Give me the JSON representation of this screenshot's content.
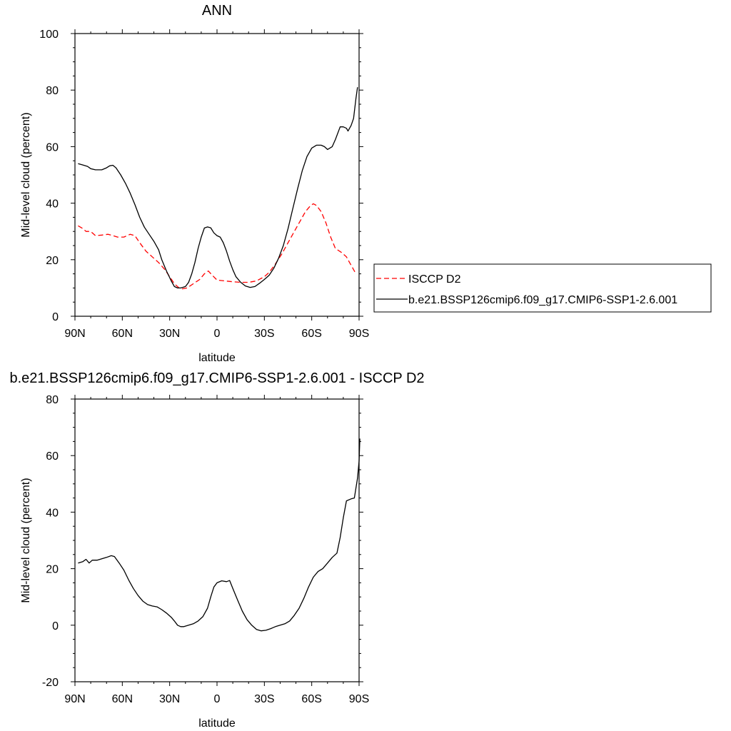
{
  "chart_data": [
    {
      "type": "line",
      "title": "ANN",
      "xlabel": "latitude",
      "ylabel": "Mid-level cloud (percent)",
      "xlim": [
        90,
        -90
      ],
      "ylim": [
        0,
        100
      ],
      "x_ticks": [
        90,
        60,
        30,
        0,
        -30,
        -60,
        -90
      ],
      "x_tick_labels": [
        "90N",
        "60N",
        "30N",
        "0",
        "30S",
        "60S",
        "90S"
      ],
      "y_ticks": [
        0,
        20,
        40,
        60,
        80,
        100
      ],
      "y_tick_labels": [
        "0",
        "20",
        "40",
        "60",
        "80",
        "100"
      ],
      "legend_position": "right",
      "series": [
        {
          "name": "ISCCP D2",
          "color": "#ff0000",
          "dash": "dashed",
          "points": [
            [
              88,
              32
            ],
            [
              85,
              31
            ],
            [
              83,
              30
            ],
            [
              80,
              30
            ],
            [
              77,
              28.5
            ],
            [
              73,
              28.7
            ],
            [
              69,
              29
            ],
            [
              66,
              28.5
            ],
            [
              63,
              28
            ],
            [
              59,
              28
            ],
            [
              55,
              29
            ],
            [
              52,
              28.5
            ],
            [
              49,
              26
            ],
            [
              45,
              23
            ],
            [
              41,
              21
            ],
            [
              37,
              19
            ],
            [
              33,
              16.5
            ],
            [
              30,
              14
            ],
            [
              27,
              11.5
            ],
            [
              24,
              10
            ],
            [
              22,
              9.7
            ],
            [
              19,
              10
            ],
            [
              15,
              11.5
            ],
            [
              11,
              13
            ],
            [
              8,
              15
            ],
            [
              5.5,
              16
            ],
            [
              3,
              14.5
            ],
            [
              0,
              12.8
            ],
            [
              -5,
              12.5
            ],
            [
              -10,
              12.2
            ],
            [
              -15,
              12
            ],
            [
              -20,
              12
            ],
            [
              -25,
              12.5
            ],
            [
              -30,
              14
            ],
            [
              -33,
              15.5
            ],
            [
              -37,
              18.5
            ],
            [
              -41,
              22
            ],
            [
              -45,
              26
            ],
            [
              -49,
              30
            ],
            [
              -53,
              34
            ],
            [
              -56,
              37
            ],
            [
              -59,
              39
            ],
            [
              -61,
              39.8
            ],
            [
              -63,
              39.2
            ],
            [
              -66,
              37
            ],
            [
              -69,
              33
            ],
            [
              -72,
              28
            ],
            [
              -75,
              24
            ],
            [
              -79,
              22.5
            ],
            [
              -82,
              21
            ],
            [
              -84,
              19
            ],
            [
              -86,
              17
            ],
            [
              -88,
              15
            ]
          ]
        },
        {
          "name": "b.e21.BSSP126cmip6.f09_g17.CMIP6-SSP1-2.6.001",
          "color": "#000000",
          "dash": "solid",
          "points": [
            [
              88,
              54
            ],
            [
              85,
              53.5
            ],
            [
              82,
              53
            ],
            [
              80,
              52.2
            ],
            [
              77,
              51.8
            ],
            [
              73,
              51.8
            ],
            [
              70,
              52.5
            ],
            [
              68,
              53.2
            ],
            [
              66,
              53.4
            ],
            [
              64,
              52.5
            ],
            [
              61,
              50
            ],
            [
              58,
              47
            ],
            [
              55,
              43.5
            ],
            [
              52,
              39.5
            ],
            [
              49,
              35
            ],
            [
              46,
              31.5
            ],
            [
              43,
              29
            ],
            [
              40,
              26.5
            ],
            [
              37,
              23.5
            ],
            [
              35,
              20
            ],
            [
              32,
              16
            ],
            [
              29,
              12.5
            ],
            [
              27,
              10.5
            ],
            [
              25,
              10
            ],
            [
              23,
              10
            ],
            [
              20,
              10.5
            ],
            [
              18,
              12
            ],
            [
              16,
              15
            ],
            [
              14,
              19
            ],
            [
              12,
              24
            ],
            [
              10,
              28
            ],
            [
              8,
              31.2
            ],
            [
              6,
              31.6
            ],
            [
              4,
              31.3
            ],
            [
              2,
              29.5
            ],
            [
              0,
              28.5
            ],
            [
              -2,
              28
            ],
            [
              -4,
              26
            ],
            [
              -6,
              23
            ],
            [
              -8,
              19.5
            ],
            [
              -10,
              16.5
            ],
            [
              -12,
              14
            ],
            [
              -15,
              12
            ],
            [
              -18,
              10.7
            ],
            [
              -21,
              10.2
            ],
            [
              -24,
              10.5
            ],
            [
              -27,
              11.7
            ],
            [
              -30,
              13
            ],
            [
              -33,
              14.5
            ],
            [
              -36,
              17
            ],
            [
              -39,
              20.5
            ],
            [
              -42,
              25
            ],
            [
              -45,
              31
            ],
            [
              -48,
              38
            ],
            [
              -51,
              45
            ],
            [
              -54,
              51.5
            ],
            [
              -57,
              56.5
            ],
            [
              -60,
              59.5
            ],
            [
              -63,
              60.5
            ],
            [
              -66,
              60.5
            ],
            [
              -68,
              60
            ],
            [
              -70,
              59
            ],
            [
              -73,
              60
            ],
            [
              -75,
              62.5
            ],
            [
              -78,
              67
            ],
            [
              -80,
              67
            ],
            [
              -82,
              66.5
            ],
            [
              -83,
              65.5
            ],
            [
              -85,
              67.5
            ],
            [
              -86.5,
              70
            ],
            [
              -88,
              77
            ],
            [
              -89,
              81
            ]
          ]
        }
      ]
    },
    {
      "type": "line",
      "title": "b.e21.BSSP126cmip6.f09_g17.CMIP6-SSP1-2.6.001 - ISCCP D2",
      "xlabel": "latitude",
      "ylabel": "Mid-level cloud (percent)",
      "xlim": [
        90,
        -90
      ],
      "ylim": [
        -20,
        80
      ],
      "x_ticks": [
        90,
        60,
        30,
        0,
        -30,
        -60,
        -90
      ],
      "x_tick_labels": [
        "90N",
        "60N",
        "30N",
        "0",
        "30S",
        "60S",
        "90S"
      ],
      "y_ticks": [
        -20,
        0,
        20,
        40,
        60,
        80
      ],
      "y_tick_labels": [
        "-20",
        "0",
        "20",
        "40",
        "60",
        "80"
      ],
      "series": [
        {
          "color": "#000000",
          "dash": "solid",
          "points": [
            [
              88,
              22
            ],
            [
              85,
              22.5
            ],
            [
              83,
              23.3
            ],
            [
              81,
              22
            ],
            [
              79,
              23
            ],
            [
              76,
              23
            ],
            [
              73,
              23.5
            ],
            [
              70,
              24
            ],
            [
              67,
              24.6
            ],
            [
              65,
              24.3
            ],
            [
              62,
              22
            ],
            [
              59,
              19.5
            ],
            [
              56,
              16
            ],
            [
              53,
              13
            ],
            [
              50,
              10.5
            ],
            [
              47,
              8.5
            ],
            [
              44,
              7.3
            ],
            [
              41,
              6.8
            ],
            [
              38,
              6.5
            ],
            [
              35,
              5.5
            ],
            [
              32,
              4.3
            ],
            [
              29,
              2.8
            ],
            [
              27,
              1.5
            ],
            [
              25,
              0
            ],
            [
              23,
              -0.5
            ],
            [
              21,
              -0.5
            ],
            [
              18,
              0
            ],
            [
              15,
              0.5
            ],
            [
              12,
              1.5
            ],
            [
              9,
              3
            ],
            [
              6,
              6
            ],
            [
              4,
              10
            ],
            [
              2,
              13.5
            ],
            [
              0,
              15
            ],
            [
              -3,
              15.7
            ],
            [
              -6,
              15.4
            ],
            [
              -8,
              15.8
            ],
            [
              -10,
              13
            ],
            [
              -13,
              9
            ],
            [
              -16,
              5
            ],
            [
              -19,
              2
            ],
            [
              -22,
              0
            ],
            [
              -25,
              -1.5
            ],
            [
              -28,
              -2
            ],
            [
              -31,
              -1.8
            ],
            [
              -34,
              -1.2
            ],
            [
              -37,
              -0.5
            ],
            [
              -40,
              0
            ],
            [
              -43,
              0.5
            ],
            [
              -46,
              1.5
            ],
            [
              -49,
              3.5
            ],
            [
              -52,
              6
            ],
            [
              -55,
              9.5
            ],
            [
              -58,
              13.5
            ],
            [
              -61,
              17
            ],
            [
              -64,
              19
            ],
            [
              -67,
              20
            ],
            [
              -70,
              22
            ],
            [
              -73,
              24
            ],
            [
              -76,
              25.5
            ],
            [
              -78,
              31
            ],
            [
              -80,
              38
            ],
            [
              -82,
              44
            ],
            [
              -85,
              44.7
            ],
            [
              -87,
              45
            ],
            [
              -89,
              52
            ],
            [
              -90,
              58
            ],
            [
              -90.5,
              66
            ]
          ]
        }
      ]
    }
  ]
}
